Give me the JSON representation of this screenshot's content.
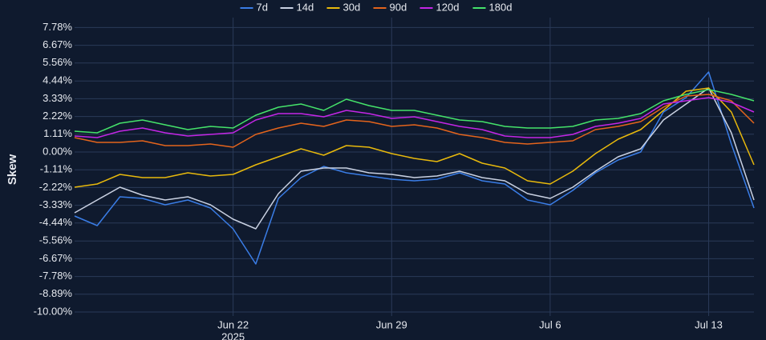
{
  "chart_data": {
    "type": "line",
    "y_label": "Skew",
    "x": [
      "2025-06-15",
      "2025-06-16",
      "2025-06-17",
      "2025-06-18",
      "2025-06-19",
      "2025-06-20",
      "2025-06-21",
      "2025-06-22",
      "2025-06-23",
      "2025-06-24",
      "2025-06-25",
      "2025-06-26",
      "2025-06-27",
      "2025-06-28",
      "2025-06-29",
      "2025-06-30",
      "2025-07-01",
      "2025-07-02",
      "2025-07-03",
      "2025-07-04",
      "2025-07-05",
      "2025-07-06",
      "2025-07-07",
      "2025-07-08",
      "2025-07-09",
      "2025-07-10",
      "2025-07-11",
      "2025-07-12",
      "2025-07-13",
      "2025-07-14",
      "2025-07-15"
    ],
    "xlim": [
      "2025-06-15",
      "2025-07-15"
    ],
    "xticks": [
      {
        "value": "2025-06-22",
        "label": "Jun 22",
        "sublabel": "2025"
      },
      {
        "value": "2025-06-29",
        "label": "Jun 29"
      },
      {
        "value": "2025-07-06",
        "label": "Jul 6"
      },
      {
        "value": "2025-07-13",
        "label": "Jul 13"
      }
    ],
    "ylim": [
      -10.25,
      8.4
    ],
    "yticks": [
      {
        "value": -10,
        "label": "-10.00%"
      },
      {
        "value": -8.89,
        "label": "-8.89%"
      },
      {
        "value": -7.78,
        "label": "-7.78%"
      },
      {
        "value": -6.67,
        "label": "-6.67%"
      },
      {
        "value": -5.56,
        "label": "-5.56%"
      },
      {
        "value": -4.44,
        "label": "-4.44%"
      },
      {
        "value": -3.33,
        "label": "-3.33%"
      },
      {
        "value": -2.22,
        "label": "-2.22%"
      },
      {
        "value": -1.11,
        "label": "-1.11%"
      },
      {
        "value": 0,
        "label": "0.00%"
      },
      {
        "value": 1.11,
        "label": "1.11%"
      },
      {
        "value": 2.22,
        "label": "2.22%"
      },
      {
        "value": 3.33,
        "label": "3.33%"
      },
      {
        "value": 4.44,
        "label": "4.44%"
      },
      {
        "value": 5.56,
        "label": "5.56%"
      },
      {
        "value": 6.67,
        "label": "6.67%"
      },
      {
        "value": 7.78,
        "label": "7.78%"
      }
    ],
    "grid": true,
    "series": [
      {
        "name": "7d",
        "color": "#3a7de6",
        "values": [
          -4.0,
          -4.6,
          -2.8,
          -2.9,
          -3.3,
          -3.0,
          -3.5,
          -4.8,
          -7.0,
          -2.9,
          -1.6,
          -0.9,
          -1.3,
          -1.5,
          -1.7,
          -1.8,
          -1.7,
          -1.3,
          -1.8,
          -2.0,
          -3.0,
          -3.3,
          -2.4,
          -1.3,
          -0.5,
          0.0,
          2.5,
          3.4,
          5.0,
          0.5,
          -3.5
        ]
      },
      {
        "name": "14d",
        "color": "#c9d1e2",
        "values": [
          -3.8,
          -3.0,
          -2.2,
          -2.7,
          -3.0,
          -2.8,
          -3.3,
          -4.2,
          -4.8,
          -2.6,
          -1.2,
          -1.0,
          -1.0,
          -1.3,
          -1.4,
          -1.6,
          -1.5,
          -1.2,
          -1.6,
          -1.8,
          -2.6,
          -2.9,
          -2.2,
          -1.2,
          -0.3,
          0.2,
          2.0,
          3.0,
          4.0,
          1.2,
          -3.0
        ]
      },
      {
        "name": "30d",
        "color": "#e8b90c",
        "values": [
          -2.2,
          -2.0,
          -1.4,
          -1.6,
          -1.6,
          -1.3,
          -1.5,
          -1.4,
          -0.8,
          -0.3,
          0.2,
          -0.2,
          0.4,
          0.3,
          -0.1,
          -0.4,
          -0.6,
          -0.1,
          -0.7,
          -1.0,
          -1.8,
          -2.0,
          -1.2,
          -0.1,
          0.8,
          1.4,
          2.6,
          3.8,
          4.0,
          2.5,
          -0.8
        ]
      },
      {
        "name": "90d",
        "color": "#e4641c",
        "values": [
          0.9,
          0.6,
          0.6,
          0.7,
          0.4,
          0.4,
          0.5,
          0.3,
          1.1,
          1.5,
          1.8,
          1.6,
          2.0,
          1.9,
          1.6,
          1.7,
          1.5,
          1.1,
          0.9,
          0.6,
          0.5,
          0.6,
          0.7,
          1.4,
          1.6,
          1.9,
          2.8,
          3.5,
          3.6,
          3.2,
          1.8
        ]
      },
      {
        "name": "120d",
        "color": "#c426e6",
        "values": [
          1.0,
          0.9,
          1.3,
          1.5,
          1.2,
          1.0,
          1.1,
          1.2,
          2.0,
          2.4,
          2.4,
          2.2,
          2.6,
          2.4,
          2.1,
          2.2,
          1.9,
          1.6,
          1.4,
          1.0,
          0.9,
          0.9,
          1.1,
          1.6,
          1.8,
          2.1,
          3.0,
          3.2,
          3.4,
          3.1,
          2.5
        ]
      },
      {
        "name": "180d",
        "color": "#45e36a",
        "values": [
          1.3,
          1.2,
          1.8,
          2.0,
          1.7,
          1.4,
          1.6,
          1.5,
          2.3,
          2.8,
          3.0,
          2.6,
          3.3,
          2.9,
          2.6,
          2.6,
          2.3,
          2.0,
          1.9,
          1.6,
          1.5,
          1.5,
          1.6,
          2.0,
          2.1,
          2.4,
          3.2,
          3.6,
          3.9,
          3.6,
          3.2
        ]
      }
    ]
  }
}
